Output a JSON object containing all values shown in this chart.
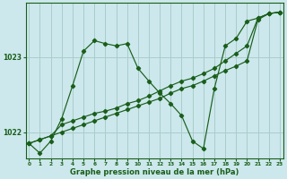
{
  "xlabel": "Graphe pression niveau de la mer (hPa)",
  "background_color": "#cce8ec",
  "grid_color": "#aacccc",
  "line_color": "#1a5e1a",
  "yticks": [
    1022,
    1023
  ],
  "ylim": [
    1021.65,
    1023.72
  ],
  "xlim": [
    -0.3,
    23.3
  ],
  "xticks": [
    0,
    1,
    2,
    3,
    4,
    5,
    6,
    7,
    8,
    9,
    10,
    11,
    12,
    13,
    14,
    15,
    16,
    17,
    18,
    19,
    20,
    21,
    22,
    23
  ],
  "s1_x": [
    0,
    1,
    2,
    3,
    4,
    5,
    6,
    7,
    8,
    9,
    10,
    11,
    12,
    13,
    14,
    15,
    16,
    17,
    18,
    19,
    20,
    21,
    22,
    23
  ],
  "s1_y": [
    1021.85,
    1021.72,
    1021.88,
    1022.18,
    1022.62,
    1023.08,
    1023.22,
    1023.18,
    1023.15,
    1023.18,
    1022.85,
    1022.68,
    1022.52,
    1022.38,
    1022.22,
    1021.88,
    1021.78,
    1022.58,
    1023.15,
    1023.25,
    1023.48,
    1023.52,
    1023.58,
    1023.6
  ],
  "s2_x": [
    0,
    1,
    2,
    3,
    4,
    5,
    6,
    7,
    8,
    9,
    10,
    11,
    12,
    13,
    14,
    15,
    16,
    17,
    18,
    19,
    20,
    21,
    22,
    23
  ],
  "s2_y": [
    1021.85,
    1021.9,
    1021.95,
    1022.0,
    1022.05,
    1022.1,
    1022.15,
    1022.2,
    1022.25,
    1022.3,
    1022.35,
    1022.4,
    1022.45,
    1022.52,
    1022.58,
    1022.62,
    1022.68,
    1022.75,
    1022.82,
    1022.88,
    1022.95,
    1023.5,
    1023.58,
    1023.6
  ],
  "s3_x": [
    0,
    1,
    2,
    3,
    4,
    5,
    6,
    7,
    8,
    9,
    10,
    11,
    12,
    13,
    14,
    15,
    16,
    17,
    18,
    19,
    20,
    21,
    22,
    23
  ],
  "s3_y": [
    1021.85,
    1021.9,
    1021.95,
    1022.1,
    1022.15,
    1022.2,
    1022.25,
    1022.28,
    1022.32,
    1022.38,
    1022.42,
    1022.48,
    1022.55,
    1022.62,
    1022.68,
    1022.72,
    1022.78,
    1022.85,
    1022.95,
    1023.05,
    1023.15,
    1023.52,
    1023.58,
    1023.6
  ]
}
